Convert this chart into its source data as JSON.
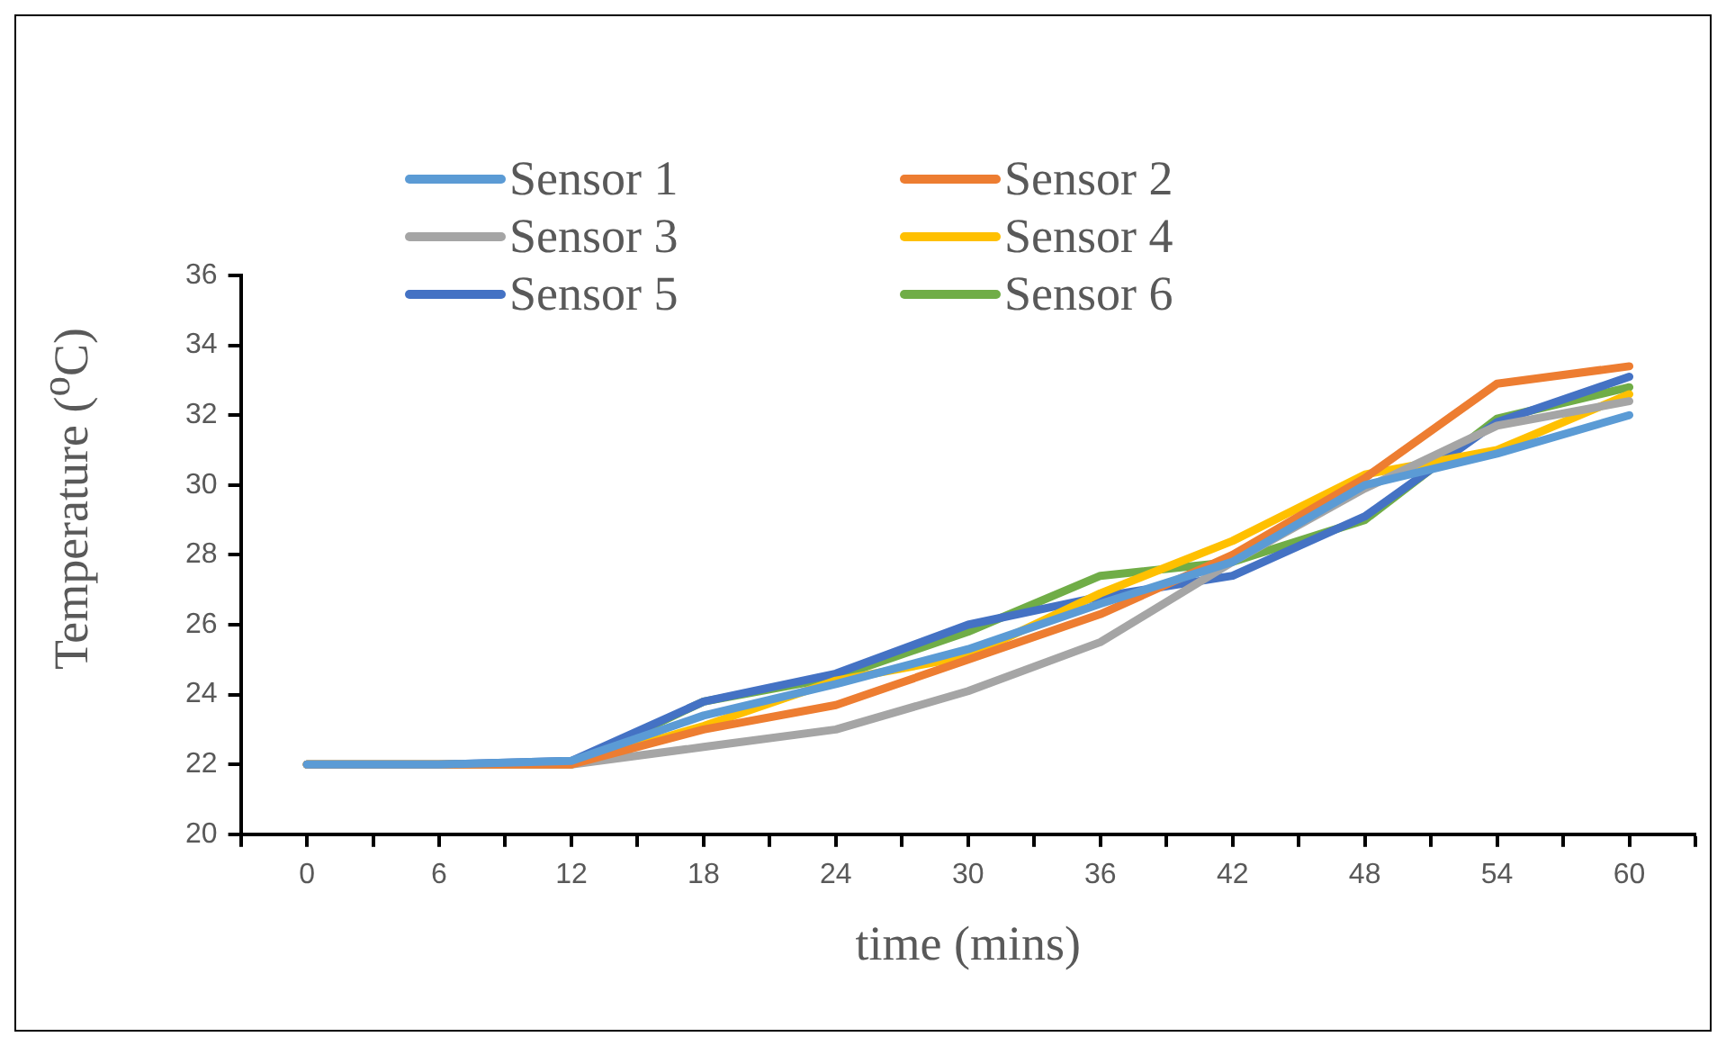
{
  "chart_data": {
    "type": "line",
    "xlabel": "time (mins)",
    "ylabel": "Temperature ($^{o}$C)",
    "x": [
      0,
      6,
      12,
      18,
      24,
      30,
      36,
      42,
      48,
      54,
      60
    ],
    "series": [
      {
        "name": "Sensor 1",
        "color": "#5b9bd5",
        "values": [
          22,
          22,
          22.1,
          23.4,
          24.3,
          25.3,
          26.6,
          27.8,
          30.0,
          30.9,
          32.0
        ]
      },
      {
        "name": "Sensor 2",
        "color": "#ed7d31",
        "values": [
          22,
          22,
          22,
          23.0,
          23.7,
          25.0,
          26.3,
          28.0,
          30.2,
          32.9,
          33.4
        ]
      },
      {
        "name": "Sensor 3",
        "color": "#a5a5a5",
        "values": [
          22,
          22,
          22,
          22.5,
          23.0,
          24.1,
          25.5,
          27.8,
          29.9,
          31.7,
          32.4
        ]
      },
      {
        "name": "Sensor 4",
        "color": "#ffc000",
        "values": [
          22,
          22,
          22,
          23.1,
          24.4,
          25.1,
          26.9,
          28.4,
          30.3,
          31.0,
          32.6
        ]
      },
      {
        "name": "Sensor 5",
        "color": "#4472c4",
        "values": [
          22,
          22,
          22.1,
          23.8,
          24.6,
          26.0,
          26.8,
          27.4,
          29.1,
          31.8,
          33.1
        ]
      },
      {
        "name": "Sensor 6",
        "color": "#70ad47",
        "values": [
          22,
          22,
          22,
          23.8,
          24.5,
          25.8,
          27.4,
          27.8,
          29.0,
          31.9,
          32.8
        ]
      }
    ],
    "xlim": [
      -3,
      63
    ],
    "xticks": [
      {
        "value": -3,
        "label": null
      },
      0,
      {
        "value": 3,
        "label": null
      },
      6,
      {
        "value": 9,
        "label": null
      },
      12,
      {
        "value": 15,
        "label": null
      },
      18,
      {
        "value": 21,
        "label": null
      },
      24,
      {
        "value": 27,
        "label": null
      },
      30,
      {
        "value": 33,
        "label": null
      },
      36,
      {
        "value": 39,
        "label": null
      },
      42,
      {
        "value": 45,
        "label": null
      },
      48,
      {
        "value": 51,
        "label": null
      },
      54,
      {
        "value": 57,
        "label": null
      },
      60,
      {
        "value": 63,
        "label": null
      }
    ],
    "ylim": [
      20,
      36
    ],
    "yticks": [
      20,
      22,
      24,
      26,
      28,
      30,
      32,
      34,
      36
    ],
    "grid": false,
    "legend": "top",
    "marker": "none",
    "line_style": "solid"
  }
}
